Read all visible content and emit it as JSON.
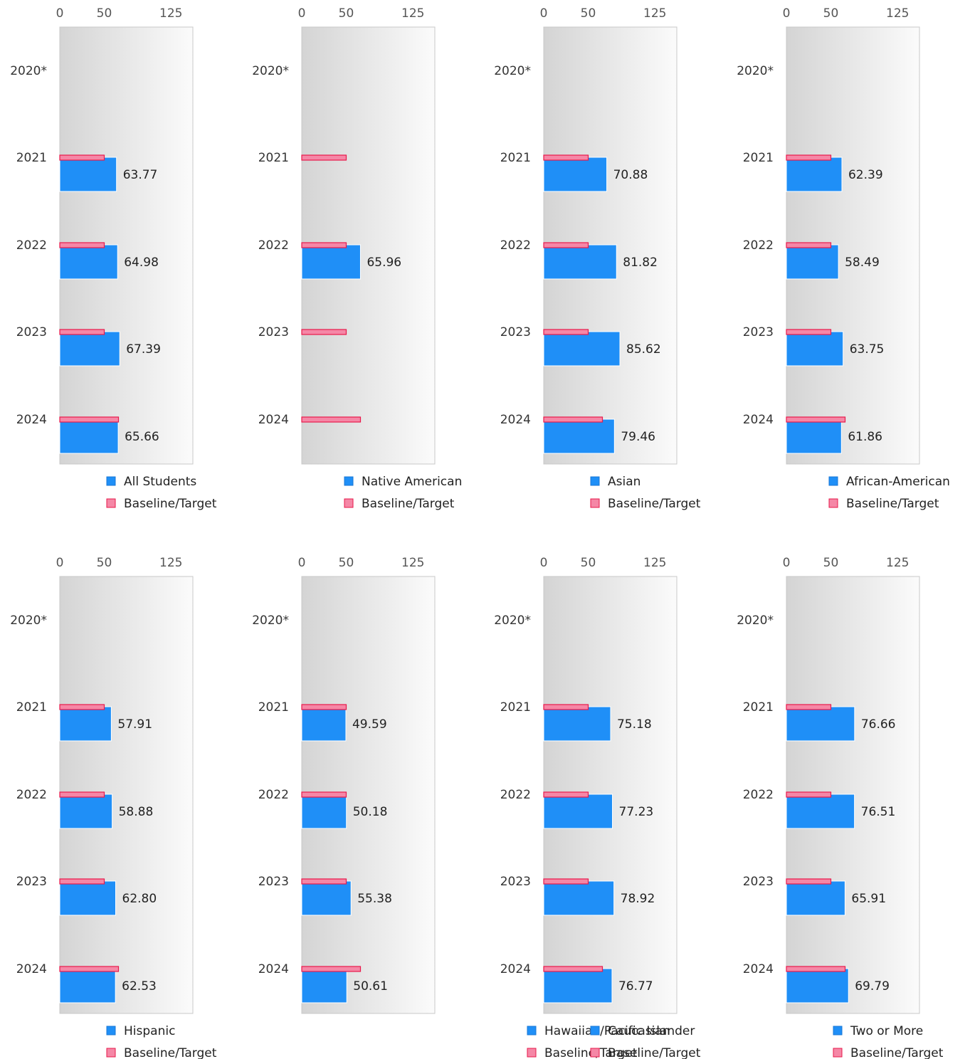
{
  "colors": {
    "series": "#1f8ff7",
    "baseline": "#f587a6",
    "baseline_stroke": "#e8194b",
    "plot_border": "#c8c8c8"
  },
  "chart_data": [
    {
      "type": "bar",
      "categories": [
        "2020*",
        "2021",
        "2022",
        "2023",
        "2024"
      ],
      "series": [
        {
          "name": "All Students",
          "values": [
            null,
            63.77,
            64.98,
            67.39,
            65.66
          ],
          "labels": [
            "",
            "63.77",
            "64.98",
            "67.39",
            "65.66"
          ]
        },
        {
          "name": "Baseline/Target",
          "values": [
            null,
            50,
            50,
            50,
            66
          ]
        }
      ],
      "xticks": [
        "0",
        "50",
        "125"
      ],
      "xlim": [
        0,
        150
      ]
    },
    {
      "type": "bar",
      "categories": [
        "2020*",
        "2021",
        "2022",
        "2023",
        "2024"
      ],
      "series": [
        {
          "name": "Native American",
          "values": [
            null,
            null,
            65.96,
            null,
            null
          ],
          "labels": [
            "",
            "",
            "65.96",
            "",
            ""
          ]
        },
        {
          "name": "Baseline/Target",
          "values": [
            null,
            50,
            50,
            50,
            66
          ]
        }
      ],
      "xticks": [
        "0",
        "50",
        "125"
      ],
      "xlim": [
        0,
        150
      ]
    },
    {
      "type": "bar",
      "categories": [
        "2020*",
        "2021",
        "2022",
        "2023",
        "2024"
      ],
      "series": [
        {
          "name": "Asian",
          "values": [
            null,
            70.88,
            81.82,
            85.62,
            79.46
          ],
          "labels": [
            "",
            "70.88",
            "81.82",
            "85.62",
            "79.46"
          ]
        },
        {
          "name": "Baseline/Target",
          "values": [
            null,
            50,
            50,
            50,
            66
          ]
        }
      ],
      "xticks": [
        "0",
        "50",
        "125"
      ],
      "xlim": [
        0,
        150
      ]
    },
    {
      "type": "bar",
      "categories": [
        "2020*",
        "2021",
        "2022",
        "2023",
        "2024"
      ],
      "series": [
        {
          "name": "African-American",
          "values": [
            null,
            62.39,
            58.49,
            63.75,
            61.86
          ],
          "labels": [
            "",
            "62.39",
            "58.49",
            "63.75",
            "61.86"
          ]
        },
        {
          "name": "Baseline/Target",
          "values": [
            null,
            50,
            50,
            50,
            66
          ]
        }
      ],
      "xticks": [
        "0",
        "50",
        "125"
      ],
      "xlim": [
        0,
        150
      ]
    },
    {
      "type": "bar",
      "categories": [
        "2020*",
        "2021",
        "2022",
        "2023",
        "2024"
      ],
      "series": [
        {
          "name": "Hispanic",
          "values": [
            null,
            57.91,
            58.88,
            62.8,
            62.53
          ],
          "labels": [
            "",
            "57.91",
            "58.88",
            "62.80",
            "62.53"
          ]
        },
        {
          "name": "Baseline/Target",
          "values": [
            null,
            50,
            50,
            50,
            66
          ]
        }
      ],
      "xticks": [
        "0",
        "50",
        "125"
      ],
      "xlim": [
        0,
        150
      ]
    },
    {
      "type": "bar",
      "categories": [
        "2020*",
        "2021",
        "2022",
        "2023",
        "2024"
      ],
      "series": [
        {
          "name": "Hawaiian/Pacific Islander",
          "values": [
            null,
            49.59,
            50.18,
            55.38,
            50.61
          ],
          "labels": [
            "",
            "49.59",
            "50.18",
            "55.38",
            "50.61"
          ]
        },
        {
          "name": "Baseline/Target",
          "values": [
            null,
            50,
            50,
            50,
            66
          ]
        }
      ],
      "xticks": [
        "0",
        "50",
        "125"
      ],
      "xlim": [
        0,
        150
      ]
    },
    {
      "type": "bar",
      "categories": [
        "2020*",
        "2021",
        "2022",
        "2023",
        "2024"
      ],
      "series": [
        {
          "name": "Caucasian",
          "values": [
            null,
            75.18,
            77.23,
            78.92,
            76.77
          ],
          "labels": [
            "",
            "75.18",
            "77.23",
            "78.92",
            "76.77"
          ]
        },
        {
          "name": "Baseline/Target",
          "values": [
            null,
            50,
            50,
            50,
            66
          ]
        }
      ],
      "xticks": [
        "0",
        "50",
        "125"
      ],
      "xlim": [
        0,
        150
      ]
    },
    {
      "type": "bar",
      "categories": [
        "2020*",
        "2021",
        "2022",
        "2023",
        "2024"
      ],
      "series": [
        {
          "name": "Two or More",
          "values": [
            null,
            76.66,
            76.51,
            65.91,
            69.79
          ],
          "labels": [
            "",
            "76.66",
            "76.51",
            "65.91",
            "69.79"
          ]
        },
        {
          "name": "Baseline/Target",
          "values": [
            null,
            50,
            50,
            50,
            66
          ]
        }
      ],
      "xticks": [
        "0",
        "50",
        "125"
      ],
      "xlim": [
        0,
        150
      ]
    }
  ]
}
